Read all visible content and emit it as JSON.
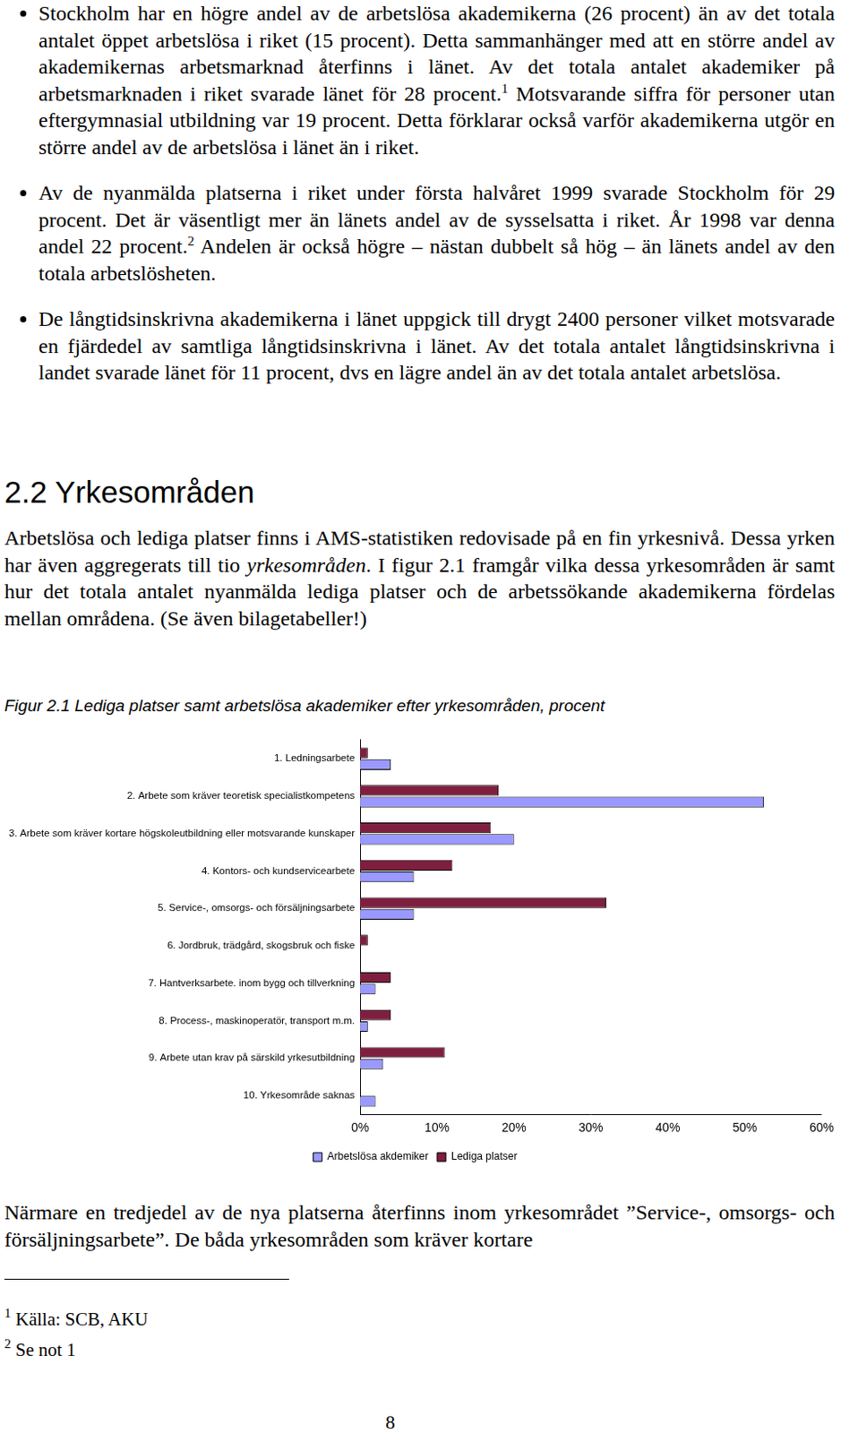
{
  "bullets": [
    [
      {
        "text": "Stockholm har en högre andel av de arbetslösa akademikerna (26 procent) än av det totala antalet öppet arbetslösa i riket (15 procent). Detta sammanhänger med att en större andel av akademikernas arbetsmarknad återfinns i länet. Av det totala antalet akademiker på arbetsmarknaden i riket svarade länet för 28 procent."
      },
      {
        "sup": "1"
      },
      {
        "text": " Motsvarande siffra för personer utan eftergymnasial utbildning var 19 procent. Detta förklarar också varför akademikerna utgör en större andel av de arbetslösa i länet än i riket."
      }
    ],
    [
      {
        "text": "Av de nyanmälda platserna i riket under första halvåret 1999 svarade Stockholm för 29 procent. Det är väsentligt mer än länets andel av de sysselsatta i riket. År 1998 var denna andel 22 procent."
      },
      {
        "sup": "2"
      },
      {
        "text": " Andelen är också högre – nästan dubbelt så hög – än länets andel av den totala arbetslösheten."
      }
    ],
    [
      {
        "text": "De långtidsinskrivna akademikerna i länet uppgick till drygt 2400 personer vilket motsvarade en fjärdedel av samtliga långtidsinskrivna i länet. Av det totala antalet långtidsinskrivna i landet svarade länet för 11 procent, dvs en lägre andel än av det totala antalet arbetslösa."
      }
    ]
  ],
  "heading": "2.2 Yrkesområden",
  "paragraph": [
    {
      "text": "Arbetslösa och lediga platser finns i AMS-statistiken redovisade på en fin yrkesnivå. Dessa yrken har även aggregerats till tio "
    },
    {
      "em": "yrkesområden"
    },
    {
      "text": ". I figur 2.1 framgår vilka dessa yrkesområden är samt hur det totala antalet nyanmälda lediga platser och de arbetssökande akademikerna fördelas mellan områdena. (Se även bilagetabeller!)"
    }
  ],
  "chart_data": {
    "type": "bar",
    "orientation": "horizontal",
    "title": "Figur 2.1 Lediga platser samt arbetslösa akademiker efter yrkesområden, procent",
    "categories": [
      "1. Ledningsarbete",
      "2. Arbete som kräver teoretisk specialistkompetens",
      "3. Arbete som kräver kortare högskoleutbildning eller motsvarande kunskaper",
      "4. Kontors- och kundservicearbete",
      "5. Service-, omsorgs- och försäljningsarbete",
      "6. Jordbruk, trädgård, skogsbruk och fiske",
      "7. Hantverksarbete. inom bygg och tillverkning",
      "8. Process-, maskinoperatör, transport m.m.",
      "9. Arbete utan krav på särskild yrkesutbildning",
      "10. Yrkesområde saknas"
    ],
    "series": [
      {
        "name": "Arbetslösa akdemiker",
        "color": "#9999ff",
        "values": [
          4,
          52.5,
          20,
          7,
          7,
          0,
          2,
          1,
          3,
          2
        ]
      },
      {
        "name": "Lediga platser",
        "color": "#7f1f3f",
        "values": [
          1,
          18,
          17,
          12,
          32,
          1,
          4,
          4,
          11,
          0
        ]
      }
    ],
    "xlim": [
      0,
      60
    ],
    "xticks": [
      {
        "value": 0,
        "label": "0%"
      },
      {
        "value": 10,
        "label": "10%"
      },
      {
        "value": 20,
        "label": "20%"
      },
      {
        "value": 30,
        "label": "30%"
      },
      {
        "value": 40,
        "label": "40%"
      },
      {
        "value": 50,
        "label": "50%"
      },
      {
        "value": 60,
        "label": "60%"
      }
    ],
    "grid": false,
    "legend": "bottom"
  },
  "closing_paragraph": "Närmare en tredjedel av de nya platserna återfinns inom yrkesområdet ”Service-, omsorgs- och försäljningsarbete”. De båda yrkesområden som kräver kortare",
  "footnotes": [
    {
      "mark": "1",
      "text": "Källa: SCB, AKU"
    },
    {
      "mark": "2",
      "text": "Se not 1"
    }
  ],
  "page_number": "8"
}
